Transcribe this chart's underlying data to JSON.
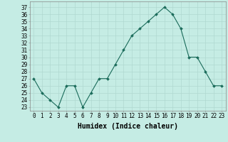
{
  "x": [
    0,
    1,
    2,
    3,
    4,
    5,
    6,
    7,
    8,
    9,
    10,
    11,
    12,
    13,
    14,
    15,
    16,
    17,
    18,
    19,
    20,
    21,
    22,
    23
  ],
  "y": [
    27,
    25,
    24,
    23,
    26,
    26,
    23,
    25,
    27,
    27,
    29,
    31,
    33,
    34,
    35,
    36,
    37,
    36,
    34,
    30,
    30,
    28,
    26,
    26
  ],
  "line_color": "#1a6b5a",
  "marker": "D",
  "marker_size": 2,
  "bg_color": "#c5ece4",
  "grid_color": "#b0d8d0",
  "ylabel_ticks": [
    23,
    24,
    25,
    26,
    27,
    28,
    29,
    30,
    31,
    32,
    33,
    34,
    35,
    36,
    37
  ],
  "ylim": [
    22.5,
    37.8
  ],
  "xlim": [
    -0.5,
    23.5
  ],
  "xlabel": "Humidex (Indice chaleur)",
  "xlabel_fontsize": 7,
  "tick_fontsize": 5.5
}
